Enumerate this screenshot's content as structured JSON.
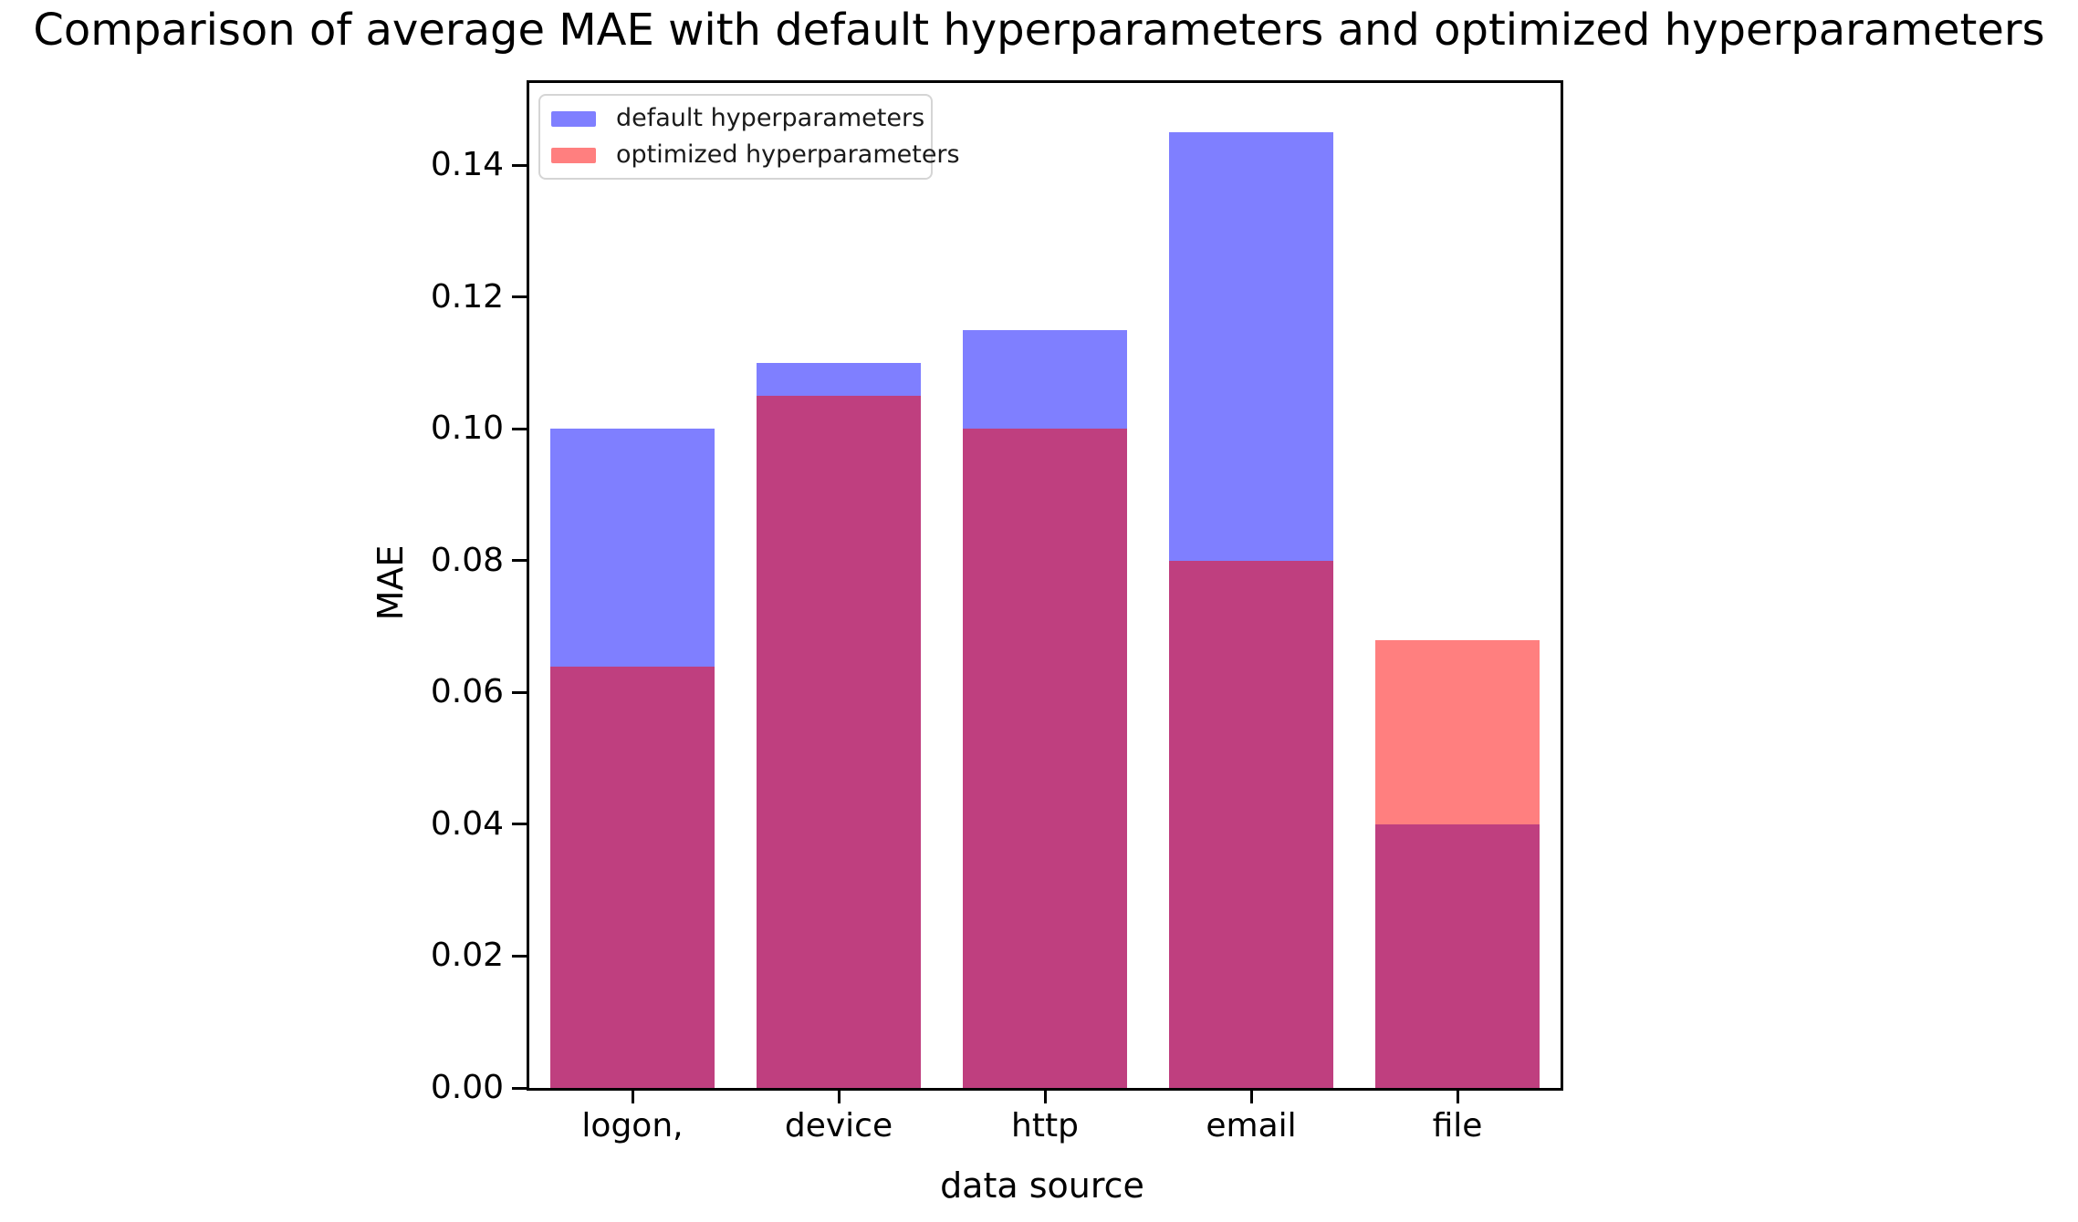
{
  "figure": {
    "background": "#ffffff"
  },
  "chart_data": {
    "type": "bar",
    "title": "Comparison of average MAE with default hyperparameters and optimized hyperparameters",
    "xlabel": "data source",
    "ylabel": "MAE",
    "categories": [
      "logon,",
      "device",
      "http",
      "email",
      "file"
    ],
    "series": [
      {
        "name": "default hyperparameters",
        "color": "#0000ff",
        "alpha": 0.5,
        "values": [
          0.1,
          0.11,
          0.115,
          0.145,
          0.04
        ]
      },
      {
        "name": "optimized hyperparameters",
        "color": "#ff0000",
        "alpha": 0.5,
        "values": [
          0.064,
          0.105,
          0.1,
          0.08,
          0.068
        ]
      }
    ],
    "overlap_color": "#bf3f7f",
    "ylim": [
      0,
      0.1525
    ],
    "yticks": [
      0,
      0.02,
      0.04,
      0.06,
      0.08,
      0.1,
      0.12,
      0.14
    ],
    "ytick_labels": [
      "0.00",
      "0.02",
      "0.04",
      "0.06",
      "0.08",
      "0.10",
      "0.12",
      "0.14"
    ],
    "bar_mode": "overlay",
    "grid": false,
    "legend": {
      "position": "upper left",
      "entries": [
        "default hyperparameters",
        "optimized hyperparameters"
      ]
    }
  }
}
